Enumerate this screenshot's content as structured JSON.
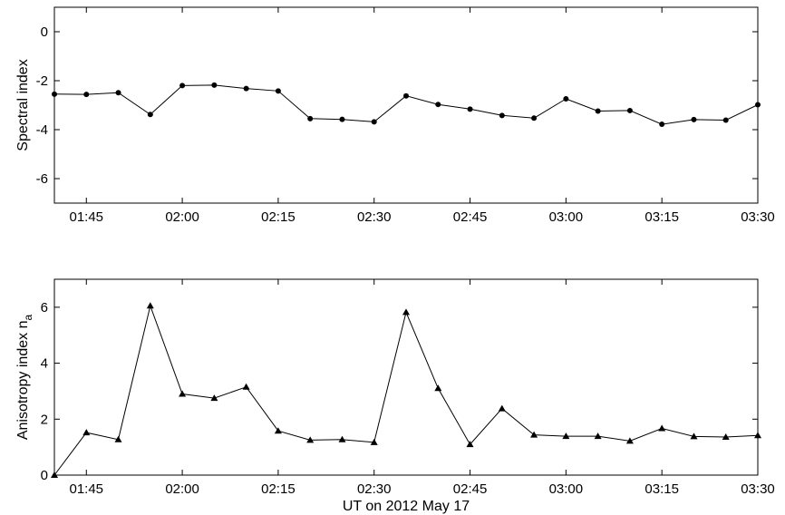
{
  "chart_data": [
    {
      "type": "line",
      "title": "",
      "xlabel": "",
      "ylabel": "Spectral index",
      "marker": "circle",
      "xlim": [
        "01:40",
        "03:30"
      ],
      "ylim": [
        -7,
        1
      ],
      "xticks": [
        "01:45",
        "02:00",
        "02:15",
        "02:30",
        "02:45",
        "03:00",
        "03:15",
        "03:30"
      ],
      "yticks": [
        "0",
        "-2",
        "-4",
        "-6"
      ],
      "ytick_values": [
        0,
        -2,
        -4,
        -6
      ],
      "x": [
        "01:40",
        "01:45",
        "01:50",
        "01:55",
        "02:00",
        "02:05",
        "02:10",
        "02:15",
        "02:20",
        "02:25",
        "02:30",
        "02:35",
        "02:40",
        "02:45",
        "02:50",
        "02:55",
        "03:00",
        "03:05",
        "03:10",
        "03:15",
        "03:20",
        "03:25",
        "03:30"
      ],
      "values": [
        -2.55,
        -2.56,
        -2.49,
        -3.38,
        -2.2,
        -2.18,
        -2.32,
        -2.42,
        -3.55,
        -3.58,
        -3.68,
        -2.62,
        -2.97,
        -3.16,
        -3.42,
        -3.53,
        -2.74,
        -3.24,
        -3.22,
        -3.78,
        -3.59,
        -3.61,
        -2.98
      ]
    },
    {
      "type": "line",
      "title": "",
      "xlabel": "UT on 2012 May 17",
      "ylabel": "Anisotropy index n",
      "ylabel_subscript": "a",
      "marker": "triangle",
      "xlim": [
        "01:40",
        "03:30"
      ],
      "ylim": [
        0,
        7
      ],
      "xticks": [
        "01:45",
        "02:00",
        "02:15",
        "02:30",
        "02:45",
        "03:00",
        "03:15",
        "03:30"
      ],
      "yticks": [
        "0",
        "2",
        "4",
        "6"
      ],
      "ytick_values": [
        0,
        2,
        4,
        6
      ],
      "x": [
        "01:40",
        "01:45",
        "01:50",
        "01:55",
        "02:00",
        "02:05",
        "02:10",
        "02:15",
        "02:20",
        "02:25",
        "02:30",
        "02:35",
        "02:40",
        "02:45",
        "02:50",
        "02:55",
        "03:00",
        "03:05",
        "03:10",
        "03:15",
        "03:20",
        "03:25",
        "03:30"
      ],
      "values": [
        0.0,
        1.52,
        1.27,
        6.05,
        2.9,
        2.75,
        3.15,
        1.58,
        1.25,
        1.27,
        1.17,
        5.82,
        3.1,
        1.1,
        2.38,
        1.44,
        1.39,
        1.39,
        1.22,
        1.67,
        1.38,
        1.36,
        1.42
      ]
    }
  ]
}
